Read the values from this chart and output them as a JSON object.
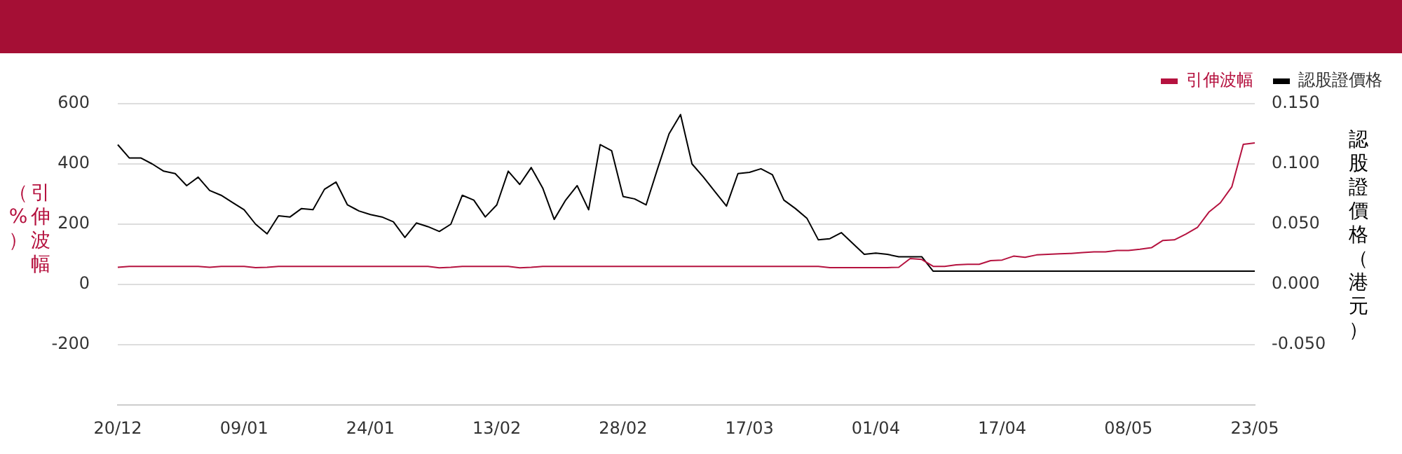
{
  "chart_data": {
    "type": "line",
    "categories": [
      "20/12",
      null,
      null,
      null,
      null,
      null,
      null,
      null,
      null,
      null,
      null,
      "09/01",
      null,
      null,
      null,
      null,
      null,
      null,
      null,
      null,
      null,
      null,
      "24/01",
      null,
      null,
      null,
      null,
      null,
      null,
      null,
      null,
      null,
      null,
      "13/02",
      null,
      null,
      null,
      null,
      null,
      null,
      null,
      null,
      null,
      null,
      "28/02",
      null,
      null,
      null,
      null,
      null,
      null,
      null,
      null,
      null,
      null,
      "17/03",
      null,
      null,
      null,
      null,
      null,
      null,
      null,
      null,
      null,
      null,
      "01/04",
      null,
      null,
      null,
      null,
      null,
      null,
      null,
      null,
      null,
      null,
      "17/04",
      null,
      null,
      null,
      null,
      null,
      null,
      null,
      null,
      null,
      null,
      "08/05",
      null,
      null,
      null,
      null,
      null,
      null,
      null,
      null,
      null,
      null,
      "23/05"
    ],
    "ylabel": "引伸波幅（%）",
    "y2label": "認股證價格（港元）",
    "series": [
      {
        "name": "引伸波幅",
        "color": "#b5123f",
        "values": [
          57,
          60,
          60,
          60,
          60,
          60,
          60,
          60,
          57,
          60,
          60,
          60,
          56,
          57,
          60,
          60,
          60,
          60,
          60,
          60,
          60,
          60,
          60,
          60,
          60,
          60,
          60,
          60,
          55,
          57,
          60,
          60,
          60,
          60,
          60,
          55,
          57,
          60,
          60,
          60,
          60,
          60,
          60,
          60,
          60,
          60,
          60,
          60,
          60,
          60,
          60,
          60,
          60,
          60,
          60,
          60,
          60,
          60,
          60,
          60,
          60,
          60,
          56,
          56,
          56,
          56,
          56,
          56,
          57,
          86,
          83,
          60,
          60,
          65,
          67,
          67,
          79,
          81,
          94,
          90,
          98,
          100,
          102,
          103,
          106,
          108,
          108,
          113,
          113,
          117,
          122,
          146,
          148,
          167,
          189,
          240,
          271,
          324,
          465,
          470
        ]
      },
      {
        "name": "認股證價格",
        "color": "#000000",
        "axis": "y2",
        "values": [
          0.116,
          0.105,
          0.105,
          0.1,
          0.094,
          0.092,
          0.082,
          0.089,
          0.078,
          0.074,
          0.068,
          0.062,
          0.05,
          0.042,
          0.057,
          0.056,
          0.063,
          0.062,
          0.079,
          0.085,
          0.066,
          0.061,
          0.058,
          0.056,
          0.052,
          0.039,
          0.051,
          0.048,
          0.044,
          0.05,
          0.074,
          0.07,
          0.056,
          0.066,
          0.094,
          0.083,
          0.097,
          0.08,
          0.054,
          0.07,
          0.082,
          0.062,
          0.116,
          0.111,
          0.073,
          0.071,
          0.066,
          0.096,
          0.125,
          0.141,
          0.1,
          0.089,
          0.077,
          0.065,
          0.092,
          0.093,
          0.096,
          0.091,
          0.07,
          0.063,
          0.055,
          0.037,
          0.038,
          0.043,
          0.034,
          0.025,
          0.026,
          0.025,
          0.023,
          0.023,
          0.023,
          0.011,
          0.011,
          0.011,
          0.011,
          0.011,
          0.011,
          0.011,
          0.011,
          0.011,
          0.011,
          0.011,
          0.011,
          0.011,
          0.011,
          0.011,
          0.011,
          0.011,
          0.011,
          0.011,
          0.011,
          0.011,
          0.011,
          0.011,
          0.011,
          0.011,
          0.011,
          0.011,
          0.011,
          0.011
        ]
      }
    ],
    "ylim": [
      -400,
      600
    ],
    "yticks": [
      -200,
      0,
      200,
      400,
      600
    ],
    "y2lim": [
      -0.1,
      0.15
    ],
    "y2ticks": [
      {
        "value": -0.05,
        "label": "-0.050"
      },
      {
        "value": 0,
        "label": "0.000"
      },
      {
        "value": 0.05,
        "label": "0.050"
      },
      {
        "value": 0.1,
        "label": "0.100"
      },
      {
        "value": 0.15,
        "label": "0.150"
      }
    ],
    "grid": "y",
    "legend": "top right",
    "marker": "none",
    "line_style": "solid"
  }
}
